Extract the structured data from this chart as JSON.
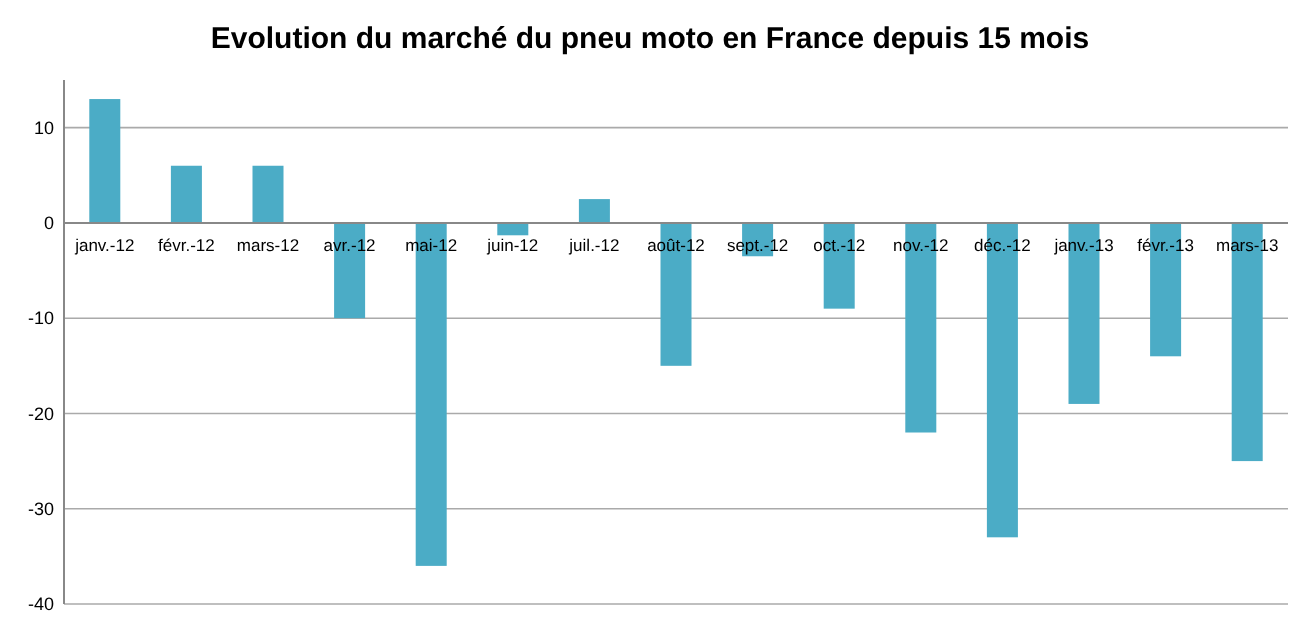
{
  "chart_data": {
    "type": "bar",
    "title": "Evolution du marché du pneu moto en France depuis 15 mois",
    "categories": [
      "janv.-12",
      "févr.-12",
      "mars-12",
      "avr.-12",
      "mai-12",
      "juin-12",
      "juil.-12",
      "août-12",
      "sept.-12",
      "oct.-12",
      "nov.-12",
      "déc.-12",
      "janv.-13",
      "févr.-13",
      "mars-13"
    ],
    "values": [
      13,
      6,
      6,
      -10,
      -36,
      -1.3,
      2.5,
      -15,
      -3.5,
      -9,
      -22,
      -33,
      -19,
      -14,
      -25
    ],
    "color": "#4bacc6",
    "ylim": [
      -40,
      15
    ],
    "yticks": [
      -40,
      -30,
      -20,
      -10,
      0,
      10
    ],
    "grid": "y"
  }
}
